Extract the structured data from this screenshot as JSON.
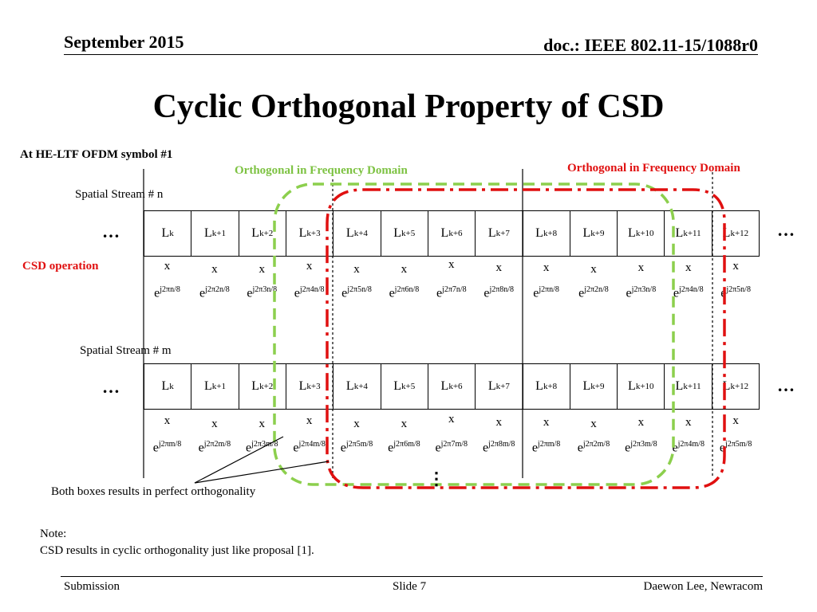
{
  "header": {
    "date": "September 2015",
    "doc": "doc.: IEEE 802.11-15/1088r0"
  },
  "title": "Cyclic Orthogonal Property of CSD",
  "symbol_label": "At HE-LTF OFDM symbol #1",
  "green_label": "Orthogonal in Frequency Domain",
  "red_label": "Orthogonal in Frequency Domain",
  "colors": {
    "green": "#8ccf4d",
    "red": "#e01010",
    "green_text": "#7dc242",
    "red_text": "#e01010"
  },
  "streams": [
    {
      "label": "Spatial Stream # n",
      "var": "n",
      "cells": [
        {
          "base": "L",
          "sub": "k"
        },
        {
          "base": "L",
          "sub": "k+1"
        },
        {
          "base": "L",
          "sub": "k+2"
        },
        {
          "base": "L",
          "sub": "k+3"
        },
        {
          "base": "L",
          "sub": "k+4"
        },
        {
          "base": "L",
          "sub": "k+5"
        },
        {
          "base": "L",
          "sub": "k+6"
        },
        {
          "base": "L",
          "sub": "k+7"
        },
        {
          "base": "L",
          "sub": "k+8"
        },
        {
          "base": "L",
          "sub": "k+9"
        },
        {
          "base": "L",
          "sub": "k+10"
        },
        {
          "base": "L",
          "sub": "k+11"
        },
        {
          "base": "L",
          "sub": "k+12"
        }
      ],
      "multiply": [
        "x",
        "x",
        "x",
        "x",
        "x",
        "x",
        "x",
        "x",
        "x",
        "x",
        "x",
        "x",
        "x"
      ],
      "phases": [
        {
          "base": "e",
          "sup": "j2πn/8"
        },
        {
          "base": "e",
          "sup": "j2π2n/8"
        },
        {
          "base": "e",
          "sup": "j2π3n/8"
        },
        {
          "base": "e",
          "sup": "j2π4n/8"
        },
        {
          "base": "e",
          "sup": "j2π5n/8"
        },
        {
          "base": "e",
          "sup": "j2π6n/8"
        },
        {
          "base": "e",
          "sup": "j2π7n/8"
        },
        {
          "base": "e",
          "sup": "j2π8n/8"
        },
        {
          "base": "e",
          "sup": "j2πn/8"
        },
        {
          "base": "e",
          "sup": "j2π2n/8"
        },
        {
          "base": "e",
          "sup": "j2π3n/8"
        },
        {
          "base": "e",
          "sup": "j2π4n/8"
        },
        {
          "base": "e",
          "sup": "j2π5n/8"
        }
      ]
    },
    {
      "label": "Spatial Stream # m",
      "var": "m",
      "cells": [
        {
          "base": "L",
          "sub": "k"
        },
        {
          "base": "L",
          "sub": "k+1"
        },
        {
          "base": "L",
          "sub": "k+2"
        },
        {
          "base": "L",
          "sub": "k+3"
        },
        {
          "base": "L",
          "sub": "k+4"
        },
        {
          "base": "L",
          "sub": "k+5"
        },
        {
          "base": "L",
          "sub": "k+6"
        },
        {
          "base": "L",
          "sub": "k+7"
        },
        {
          "base": "L",
          "sub": "k+8"
        },
        {
          "base": "L",
          "sub": "k+9"
        },
        {
          "base": "L",
          "sub": "k+10"
        },
        {
          "base": "L",
          "sub": "k+11"
        },
        {
          "base": "L",
          "sub": "k+12"
        }
      ],
      "multiply": [
        "x",
        "x",
        "x",
        "x",
        "x",
        "x",
        "x",
        "x",
        "x",
        "x",
        "x",
        "x",
        "x"
      ],
      "phases": [
        {
          "base": "e",
          "sup": "j2πm/8"
        },
        {
          "base": "e",
          "sup": "j2π2m/8"
        },
        {
          "base": "e",
          "sup": "j2π3m/8"
        },
        {
          "base": "e",
          "sup": "j2π4m/8"
        },
        {
          "base": "e",
          "sup": "j2π5m/8"
        },
        {
          "base": "e",
          "sup": "j2π6m/8"
        },
        {
          "base": "e",
          "sup": "j2π7m/8"
        },
        {
          "base": "e",
          "sup": "j2π8m/8"
        },
        {
          "base": "e",
          "sup": "j2πm/8"
        },
        {
          "base": "e",
          "sup": "j2π2m/8"
        },
        {
          "base": "e",
          "sup": "j2π3m/8"
        },
        {
          "base": "e",
          "sup": "j2π4m/8"
        },
        {
          "base": "e",
          "sup": "j2π5m/8"
        }
      ]
    }
  ],
  "ellipsis": "…",
  "vertical_ellipsis": "⋮",
  "csd_label": "CSD operation",
  "both_boxes_label": "Both boxes results in perfect orthogonality",
  "note": {
    "heading": "Note:",
    "text": "CSD results in cyclic orthogonality just like proposal [1]."
  },
  "footer": {
    "left": "Submission",
    "center": "Slide 7",
    "right": "Daewon Lee, Newracom"
  }
}
